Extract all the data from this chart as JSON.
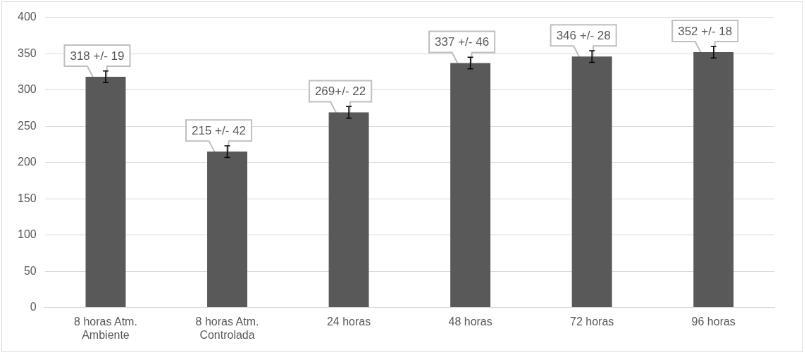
{
  "chart_data": {
    "type": "bar",
    "categories": [
      "8 horas Atm. Ambiente",
      "8 horas Atm. Controlada",
      "24 horas",
      "48 horas",
      "72 horas",
      "96 horas"
    ],
    "values": [
      318,
      215,
      269,
      337,
      346,
      352
    ],
    "color": "#595959",
    "errors": [
      8,
      8,
      8,
      8,
      8,
      8
    ],
    "value_labels": [
      "318 +/- 19",
      "215 +/- 42",
      "269+/- 22",
      "337 +/- 46",
      "346 +/- 28",
      "352 +/- 18"
    ],
    "ylim": [
      0,
      400
    ],
    "yticks": [
      0,
      50,
      100,
      150,
      200,
      250,
      300,
      350,
      400
    ],
    "grid": "y",
    "legend": false
  }
}
